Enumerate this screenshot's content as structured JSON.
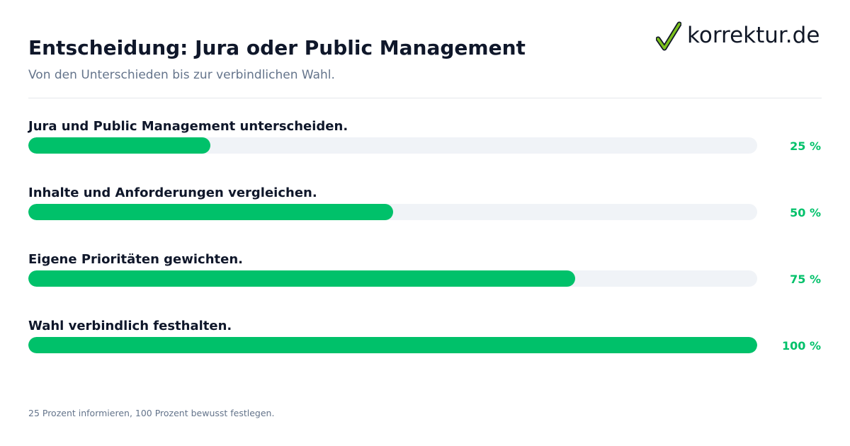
{
  "header": {
    "title": "Entscheidung: Jura oder Public Management",
    "subtitle": "Von den Unterschieden bis zur verbindlichen Wahl."
  },
  "logo": {
    "text": "korrektur.de",
    "icon": "check-icon",
    "check_color": "#7cc11c"
  },
  "chart_data": {
    "type": "bar",
    "orientation": "horizontal",
    "title": "Entscheidung: Jura oder Public Management",
    "subtitle": "Von den Unterschieden bis zur verbindlichen Wahl.",
    "categories": [
      "Jura und Public Management unterscheiden.",
      "Inhalte und Anforderungen vergleichen.",
      "Eigene Prioritäten gewichten.",
      "Wahl verbindlich festhalten."
    ],
    "values": [
      25,
      50,
      75,
      100
    ],
    "value_labels": [
      "25 %",
      "50 %",
      "75 %",
      "100 %"
    ],
    "xlim": [
      0,
      100
    ],
    "grid": false,
    "legend": "none",
    "bar_color": "#00c16a",
    "track_color": "#f0f3f7",
    "footnote": "25 Prozent informieren, 100 Prozent bewusst festlegen."
  }
}
